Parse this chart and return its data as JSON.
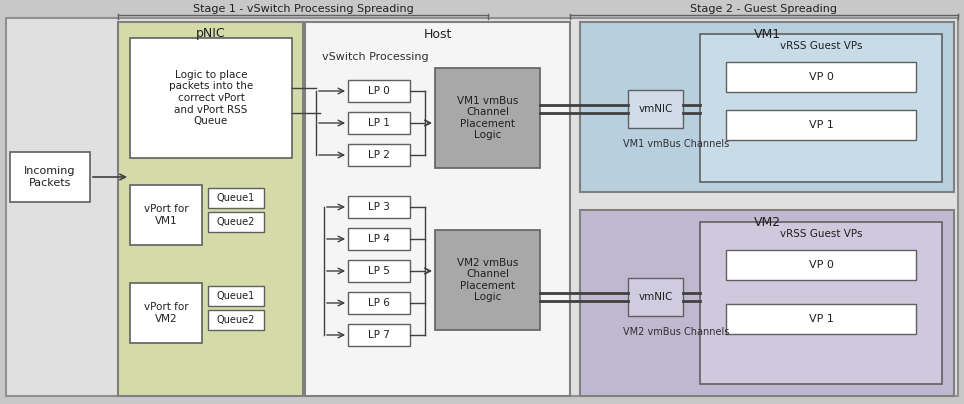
{
  "fig_width": 9.64,
  "fig_height": 4.04,
  "dpi": 100,
  "bg_color": "#c8c8c8",
  "stage1_title": "Stage 1 - vSwitch Processing Spreading",
  "stage2_title": "Stage 2 - Guest Spreading",
  "pnic_bg": "#d4dba8",
  "pnic_border": "#808080",
  "pnic_label": "pNIC",
  "host_bg": "#f5f5f5",
  "host_border": "#808080",
  "host_label": "Host",
  "vm1_bg": "#b8cfe0",
  "vm1_border": "#808080",
  "vm1_label": "VM1",
  "vm2_bg": "#c0b8d0",
  "vm2_border": "#808080",
  "vm2_label": "VM2",
  "white": "#ffffff",
  "gray_box": "#a8a8a8",
  "light_gray_inner": "#d0d0d0",
  "box_border": "#606060",
  "arrow_color": "#404040",
  "text_color": "#202020",
  "outer_bg": "#e0e0e0",
  "outer_border": "#909090",
  "incoming_text": "Incoming\nPackets",
  "logic_text": "Logic to place\npackets into the\ncorrect vPort\nand vPort RSS\nQueue",
  "vswitch_text": "vSwitch Processing",
  "vm1_vmbus_text": "VM1 vmBus\nChannel\nPlacement\nLogic",
  "vm2_vmbus_text": "VM2 vmBus\nChannel\nPlacement\nLogic",
  "vm1_channels_text": "VM1 vmBus Channels",
  "vm2_channels_text": "VM2 vmBus Channels",
  "vmnic_text": "vmNIC",
  "vrss_text": "vRSS Guest VPs",
  "vport_vm1_text": "vPort for\nVM1",
  "vport_vm2_text": "vPort for\nVM2",
  "queue1_text": "Queue1",
  "queue2_text": "Queue2",
  "vp0_text": "VP 0",
  "vp1_text": "VP 1",
  "lp_labels": [
    "LP 0",
    "LP 1",
    "LP 2",
    "LP 3",
    "LP 4",
    "LP 5",
    "LP 6",
    "LP 7"
  ]
}
